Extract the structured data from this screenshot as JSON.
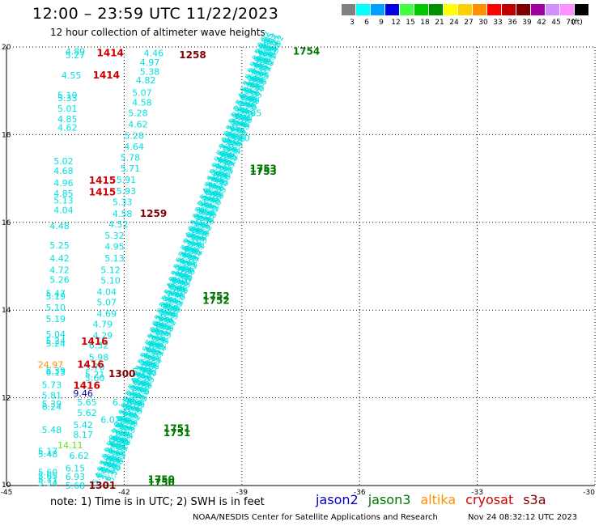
{
  "header": {
    "title": "12:00 – 23:59 UTC 11/22/2023",
    "subtitle": "12 hour collection of altimeter wave heights"
  },
  "legend": {
    "unit": "(ft)",
    "bins": [
      {
        "label": "3",
        "color": "#808080"
      },
      {
        "label": "6",
        "color": "#00ffff"
      },
      {
        "label": "9",
        "color": "#00a0ff"
      },
      {
        "label": "12",
        "color": "#0000e0"
      },
      {
        "label": "15",
        "color": "#40ff40"
      },
      {
        "label": "18",
        "color": "#00c800"
      },
      {
        "label": "21",
        "color": "#009000"
      },
      {
        "label": "24",
        "color": "#ffff00"
      },
      {
        "label": "27",
        "color": "#ffd000"
      },
      {
        "label": "30",
        "color": "#ff9000"
      },
      {
        "label": "33",
        "color": "#ff0000"
      },
      {
        "label": "36",
        "color": "#c00000"
      },
      {
        "label": "39",
        "color": "#800000"
      },
      {
        "label": "42",
        "color": "#a000a0"
      },
      {
        "label": "45",
        "color": "#d090ff"
      },
      {
        "label": "70",
        "color": "#ff90ff"
      },
      {
        "label": "",
        "color": "#000000"
      }
    ]
  },
  "axes": {
    "x_ticks": [
      "-45",
      "-42",
      "-39",
      "-36",
      "-33",
      "-30"
    ],
    "y_ticks": [
      "10",
      "12",
      "14",
      "16",
      "18",
      "20"
    ],
    "x_min": -45,
    "x_max": -30,
    "y_min": 10,
    "y_max": 20
  },
  "colors": {
    "jason2": "#0000c8",
    "jason3": "#007800",
    "altika": "#ff9000",
    "cryosat": "#d00000",
    "s3a": "#800000",
    "cyan": "#00e0e0",
    "lime": "#60e020",
    "dkblue": "#0000a0"
  },
  "chart_data": {
    "type": "scatter",
    "title": "12:00 – 23:59 UTC 11/22/2023",
    "subtitle": "12 hour collection of altimeter wave heights",
    "xlim": [
      -45,
      -30
    ],
    "ylim": [
      10,
      20
    ],
    "grid": true,
    "wave_heights": [
      {
        "lon": -43.5,
        "lat": 19.9,
        "value": "4.89",
        "color": "cyan"
      },
      {
        "lon": -43.5,
        "lat": 19.82,
        "value": "5.27",
        "color": "cyan"
      },
      {
        "lon": -41.5,
        "lat": 19.86,
        "value": "4.46",
        "color": "cyan"
      },
      {
        "lon": -41.6,
        "lat": 19.65,
        "value": "4.97",
        "color": "cyan"
      },
      {
        "lon": -41.6,
        "lat": 19.44,
        "value": "5.38",
        "color": "cyan"
      },
      {
        "lon": -43.6,
        "lat": 19.35,
        "value": "4.55",
        "color": "cyan"
      },
      {
        "lon": -41.7,
        "lat": 19.24,
        "value": "4.82",
        "color": "cyan"
      },
      {
        "lon": -41.8,
        "lat": 18.96,
        "value": "5.07",
        "color": "cyan"
      },
      {
        "lon": -43.7,
        "lat": 18.9,
        "value": "5.10",
        "color": "cyan"
      },
      {
        "lon": -43.7,
        "lat": 18.84,
        "value": "5.33",
        "color": "cyan"
      },
      {
        "lon": -41.8,
        "lat": 18.74,
        "value": "4.58",
        "color": "cyan"
      },
      {
        "lon": -43.7,
        "lat": 18.6,
        "value": "5.01",
        "color": "cyan"
      },
      {
        "lon": -41.9,
        "lat": 18.5,
        "value": "5.28",
        "color": "cyan"
      },
      {
        "lon": -43.7,
        "lat": 18.36,
        "value": "4.85",
        "color": "cyan"
      },
      {
        "lon": -41.9,
        "lat": 18.24,
        "value": "4.62",
        "color": "cyan"
      },
      {
        "lon": -43.7,
        "lat": 18.16,
        "value": "4.62",
        "color": "cyan"
      },
      {
        "lon": -42.0,
        "lat": 17.98,
        "value": "5.28",
        "color": "cyan"
      },
      {
        "lon": -42.0,
        "lat": 17.73,
        "value": "4.64",
        "color": "cyan"
      },
      {
        "lon": -42.1,
        "lat": 17.48,
        "value": "5.78",
        "color": "cyan"
      },
      {
        "lon": -43.8,
        "lat": 17.4,
        "value": "5.02",
        "color": "cyan"
      },
      {
        "lon": -42.1,
        "lat": 17.23,
        "value": "5.71",
        "color": "cyan"
      },
      {
        "lon": -43.8,
        "lat": 17.18,
        "value": "4.68",
        "color": "cyan"
      },
      {
        "lon": -42.2,
        "lat": 16.97,
        "value": "5.91",
        "color": "cyan"
      },
      {
        "lon": -43.8,
        "lat": 16.9,
        "value": "4.96",
        "color": "cyan"
      },
      {
        "lon": -42.2,
        "lat": 16.72,
        "value": "5.93",
        "color": "cyan"
      },
      {
        "lon": -43.8,
        "lat": 16.66,
        "value": "4.85",
        "color": "cyan"
      },
      {
        "lon": -42.3,
        "lat": 16.47,
        "value": "5.33",
        "color": "cyan"
      },
      {
        "lon": -43.8,
        "lat": 16.5,
        "value": "5.13",
        "color": "cyan"
      },
      {
        "lon": -43.8,
        "lat": 16.28,
        "value": "4.04",
        "color": "cyan"
      },
      {
        "lon": -42.3,
        "lat": 16.2,
        "value": "4.58",
        "color": "cyan"
      },
      {
        "lon": -42.4,
        "lat": 15.96,
        "value": "4.52",
        "color": "cyan"
      },
      {
        "lon": -43.9,
        "lat": 15.92,
        "value": "4.48",
        "color": "cyan"
      },
      {
        "lon": -42.5,
        "lat": 15.7,
        "value": "5.32",
        "color": "cyan"
      },
      {
        "lon": -43.9,
        "lat": 15.48,
        "value": "5.25",
        "color": "cyan"
      },
      {
        "lon": -42.5,
        "lat": 15.45,
        "value": "4.95",
        "color": "cyan"
      },
      {
        "lon": -42.5,
        "lat": 15.18,
        "value": "5.13",
        "color": "cyan"
      },
      {
        "lon": -43.9,
        "lat": 15.18,
        "value": "4.42",
        "color": "cyan"
      },
      {
        "lon": -42.6,
        "lat": 14.92,
        "value": "5.12",
        "color": "cyan"
      },
      {
        "lon": -43.9,
        "lat": 14.92,
        "value": "4.72",
        "color": "cyan"
      },
      {
        "lon": -42.6,
        "lat": 14.68,
        "value": "5.10",
        "color": "cyan"
      },
      {
        "lon": -43.9,
        "lat": 14.7,
        "value": "5.26",
        "color": "cyan"
      },
      {
        "lon": -42.7,
        "lat": 14.42,
        "value": "4.04",
        "color": "cyan"
      },
      {
        "lon": -44.0,
        "lat": 14.38,
        "value": "5.47",
        "color": "cyan"
      },
      {
        "lon": -44.0,
        "lat": 14.32,
        "value": "5.19",
        "color": "cyan"
      },
      {
        "lon": -42.7,
        "lat": 14.18,
        "value": "5.07",
        "color": "cyan"
      },
      {
        "lon": -44.0,
        "lat": 14.06,
        "value": "5.10",
        "color": "cyan"
      },
      {
        "lon": -42.7,
        "lat": 13.92,
        "value": "4.69",
        "color": "cyan"
      },
      {
        "lon": -44.0,
        "lat": 13.8,
        "value": "5.19",
        "color": "cyan"
      },
      {
        "lon": -42.8,
        "lat": 13.68,
        "value": "4.79",
        "color": "cyan"
      },
      {
        "lon": -44.0,
        "lat": 13.45,
        "value": "5.04",
        "color": "cyan"
      },
      {
        "lon": -42.8,
        "lat": 13.42,
        "value": "4.29",
        "color": "cyan"
      },
      {
        "lon": -44.0,
        "lat": 13.3,
        "value": "5.24",
        "color": "cyan"
      },
      {
        "lon": -44.0,
        "lat": 13.24,
        "value": "5.24",
        "color": "cyan"
      },
      {
        "lon": -42.9,
        "lat": 13.2,
        "value": "6.32",
        "color": "cyan"
      },
      {
        "lon": -42.9,
        "lat": 12.92,
        "value": "5.98",
        "color": "cyan"
      },
      {
        "lon": -44.2,
        "lat": 12.76,
        "value": "24.97",
        "color": "altika"
      },
      {
        "lon": -43.0,
        "lat": 12.7,
        "value": "5.70",
        "color": "cyan"
      },
      {
        "lon": -44.0,
        "lat": 12.62,
        "value": "5.39",
        "color": "cyan"
      },
      {
        "lon": -44.0,
        "lat": 12.58,
        "value": "6.13",
        "color": "cyan"
      },
      {
        "lon": -43.0,
        "lat": 12.54,
        "value": "5.21",
        "color": "cyan"
      },
      {
        "lon": -43.0,
        "lat": 12.45,
        "value": "5.60",
        "color": "cyan"
      },
      {
        "lon": -44.1,
        "lat": 12.3,
        "value": "5.73",
        "color": "cyan"
      },
      {
        "lon": -43.3,
        "lat": 12.1,
        "value": "9.46",
        "color": "dkblue"
      },
      {
        "lon": -44.1,
        "lat": 12.06,
        "value": "5.81",
        "color": "cyan"
      },
      {
        "lon": -43.2,
        "lat": 11.9,
        "value": "5.65",
        "color": "cyan"
      },
      {
        "lon": -44.1,
        "lat": 11.86,
        "value": "5.39",
        "color": "cyan"
      },
      {
        "lon": -44.1,
        "lat": 11.8,
        "value": "6.24",
        "color": "cyan"
      },
      {
        "lon": -43.2,
        "lat": 11.66,
        "value": "5.62",
        "color": "cyan"
      },
      {
        "lon": -43.3,
        "lat": 11.38,
        "value": "5.42",
        "color": "cyan"
      },
      {
        "lon": -44.1,
        "lat": 11.27,
        "value": "5.48",
        "color": "cyan"
      },
      {
        "lon": -43.3,
        "lat": 11.16,
        "value": "8.17",
        "color": "cyan"
      },
      {
        "lon": -43.7,
        "lat": 10.92,
        "value": "14.11",
        "color": "lime"
      },
      {
        "lon": -44.2,
        "lat": 10.78,
        "value": "5.17",
        "color": "cyan"
      },
      {
        "lon": -44.2,
        "lat": 10.72,
        "value": "5.48",
        "color": "cyan"
      },
      {
        "lon": -43.4,
        "lat": 10.68,
        "value": "6.62",
        "color": "cyan"
      },
      {
        "lon": -43.5,
        "lat": 10.4,
        "value": "6.15",
        "color": "cyan"
      },
      {
        "lon": -44.2,
        "lat": 10.3,
        "value": "5.60",
        "color": "cyan"
      },
      {
        "lon": -44.2,
        "lat": 10.22,
        "value": "5.65",
        "color": "cyan"
      },
      {
        "lon": -43.5,
        "lat": 10.2,
        "value": "6.93",
        "color": "cyan"
      },
      {
        "lon": -44.2,
        "lat": 10.14,
        "value": "5.71",
        "color": "cyan"
      },
      {
        "lon": -44.2,
        "lat": 10.06,
        "value": "5.34",
        "color": "cyan"
      },
      {
        "lon": -43.5,
        "lat": 10.0,
        "value": "5.68",
        "color": "cyan"
      },
      {
        "lon": -38.6,
        "lat": 19.9,
        "value": "6.02",
        "color": "cyan"
      },
      {
        "lon": -39.0,
        "lat": 18.5,
        "value": "5.05",
        "color": "cyan"
      },
      {
        "lon": -39.3,
        "lat": 17.92,
        "value": "5.10",
        "color": "cyan"
      },
      {
        "lon": -40.8,
        "lat": 14.68,
        "value": "6.10",
        "color": "cyan"
      },
      {
        "lon": -41.8,
        "lat": 12.6,
        "value": "5.98",
        "color": "cyan"
      },
      {
        "lon": -42.4,
        "lat": 11.0,
        "value": "5.10",
        "color": "cyan"
      },
      {
        "lon": -42.3,
        "lat": 11.9,
        "value": "6.16",
        "color": "cyan"
      },
      {
        "lon": -42.6,
        "lat": 11.5,
        "value": "6.02",
        "color": "cyan"
      }
    ],
    "time_labels": [
      {
        "lon": -42.7,
        "lat": 19.86,
        "value": "1414",
        "color": "cryosat"
      },
      {
        "lon": -40.6,
        "lat": 19.82,
        "value": "1258",
        "color": "s3a"
      },
      {
        "lon": -42.8,
        "lat": 19.35,
        "value": "1414",
        "color": "cryosat"
      },
      {
        "lon": -37.7,
        "lat": 19.9,
        "value": "1754",
        "color": "jason3"
      },
      {
        "lon": -42.9,
        "lat": 16.96,
        "value": "1415",
        "color": "cryosat"
      },
      {
        "lon": -42.9,
        "lat": 16.69,
        "value": "1415",
        "color": "cryosat"
      },
      {
        "lon": -38.8,
        "lat": 17.22,
        "value": "1753",
        "color": "jason3"
      },
      {
        "lon": -38.8,
        "lat": 17.16,
        "value": "1753",
        "color": "jason3"
      },
      {
        "lon": -41.6,
        "lat": 16.2,
        "value": "1259",
        "color": "s3a"
      },
      {
        "lon": -40.0,
        "lat": 14.32,
        "value": "1752",
        "color": "jason3"
      },
      {
        "lon": -40.0,
        "lat": 14.22,
        "value": "1752",
        "color": "jason3"
      },
      {
        "lon": -43.1,
        "lat": 13.28,
        "value": "1416",
        "color": "cryosat"
      },
      {
        "lon": -43.2,
        "lat": 12.76,
        "value": "1416",
        "color": "cryosat"
      },
      {
        "lon": -42.4,
        "lat": 12.55,
        "value": "1300",
        "color": "s3a"
      },
      {
        "lon": -43.3,
        "lat": 12.28,
        "value": "1416",
        "color": "cryosat"
      },
      {
        "lon": -41.0,
        "lat": 11.3,
        "value": "1751",
        "color": "jason3"
      },
      {
        "lon": -41.0,
        "lat": 11.2,
        "value": "1751",
        "color": "jason3"
      },
      {
        "lon": -41.4,
        "lat": 10.14,
        "value": "1750",
        "color": "jason3"
      },
      {
        "lon": -41.4,
        "lat": 10.06,
        "value": "1750",
        "color": "jason3"
      },
      {
        "lon": -42.9,
        "lat": 10.0,
        "value": "1301",
        "color": "s3a"
      }
    ],
    "dense_track": {
      "satellite": "jason3",
      "color": "cyan",
      "start": {
        "lon": -42.7,
        "lat": 10.0
      },
      "end": {
        "lon": -38.5,
        "lat": 19.95
      },
      "strands": 5,
      "values": [
        "5.02",
        "4.97",
        "5.10",
        "5.21",
        "5.33",
        "5.48",
        "5.62",
        "5.75",
        "5.88",
        "6.02",
        "6.10",
        "5.98",
        "5.85",
        "5.70",
        "5.56"
      ]
    }
  },
  "footer": {
    "note": "note:  1) Time is in UTC;  2) SWH is in feet",
    "satellites": [
      {
        "name": "jason2",
        "color": "jason2"
      },
      {
        "name": "jason3",
        "color": "jason3"
      },
      {
        "name": "altika",
        "color": "altika"
      },
      {
        "name": "cryosat",
        "color": "cryosat"
      },
      {
        "name": "s3a",
        "color": "s3a"
      }
    ],
    "credit": "NOAA/NESDIS Center for Satellite Applications and Research",
    "generated": "Nov 24 08:32:12 UTC 2023"
  }
}
